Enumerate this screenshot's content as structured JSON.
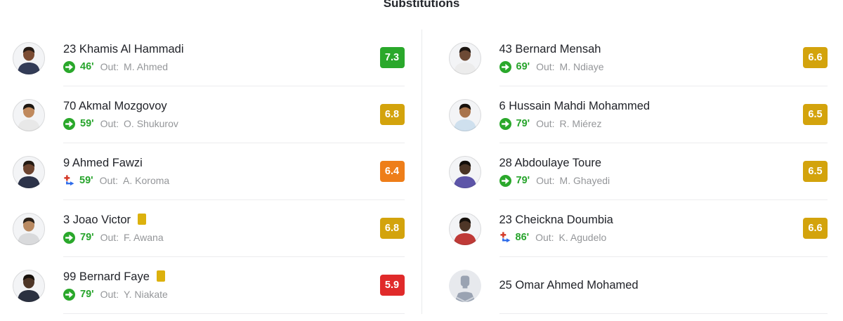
{
  "title": "Substitutions",
  "labels": {
    "out": "Out:"
  },
  "colors": {
    "rating": {
      "green": "#2aa82b",
      "yellow": "#d3a30c",
      "orange": "#ee7e19",
      "red": "#e02a2a"
    },
    "minute_green": "#27a42c",
    "sub_in_green": "#2aa82b",
    "injury_red": "#d43a28",
    "injury_blue": "#2e6bea",
    "yellow_card": "#dcb10d",
    "placeholder_avatar": {
      "bg": "#e7e9ed",
      "fg": "#9aa3b2",
      "stripe": "#cdd2da"
    }
  },
  "columns": {
    "left": [
      {
        "name": "23 Khamis Al Hammadi",
        "yellow_card": false,
        "sub": {
          "type": "in",
          "minute": "46'",
          "out_player": "M. Ahmed"
        },
        "rating": {
          "value": "7.3",
          "level": "green"
        },
        "avatar": {
          "type": "photo",
          "skin": "#7b4c33",
          "hair": "#241a14",
          "shirt": "#333c57",
          "bg": "#f3f4f6"
        }
      },
      {
        "name": "70 Akmal Mozgovoy",
        "yellow_card": false,
        "sub": {
          "type": "in",
          "minute": "59'",
          "out_player": "O. Shukurov"
        },
        "rating": {
          "value": "6.8",
          "level": "yellow"
        },
        "avatar": {
          "type": "photo",
          "skin": "#c08a5e",
          "hair": "#1d1712",
          "shirt": "#e8e8e8",
          "bg": "#f3f4f6"
        }
      },
      {
        "name": "9 Ahmed Fawzi",
        "yellow_card": false,
        "sub": {
          "type": "injury",
          "minute": "59'",
          "out_player": "A. Koroma"
        },
        "rating": {
          "value": "6.4",
          "level": "orange"
        },
        "avatar": {
          "type": "photo",
          "skin": "#6d4530",
          "hair": "#231a13",
          "shirt": "#2c3349",
          "bg": "#f3f4f6"
        }
      },
      {
        "name": "3 Joao Victor",
        "yellow_card": true,
        "sub": {
          "type": "in",
          "minute": "79'",
          "out_player": "F. Awana"
        },
        "rating": {
          "value": "6.8",
          "level": "yellow"
        },
        "avatar": {
          "type": "photo",
          "skin": "#b98a62",
          "hair": "#2a2119",
          "shirt": "#d9dadc",
          "bg": "#f3f4f6"
        }
      },
      {
        "name": "99 Bernard Faye",
        "yellow_card": true,
        "sub": {
          "type": "in",
          "minute": "79'",
          "out_player": "Y. Niakate"
        },
        "rating": {
          "value": "5.9",
          "level": "red"
        },
        "avatar": {
          "type": "photo",
          "skin": "#4e3627",
          "hair": "#17110c",
          "shirt": "#2b3140",
          "bg": "#f3f4f6"
        }
      }
    ],
    "right": [
      {
        "name": "43 Bernard Mensah",
        "yellow_card": false,
        "sub": {
          "type": "in",
          "minute": "69'",
          "out_player": "M. Ndiaye"
        },
        "rating": {
          "value": "6.6",
          "level": "yellow"
        },
        "avatar": {
          "type": "photo",
          "skin": "#6d4a35",
          "hair": "#1c1510",
          "shirt": "#ececec",
          "bg": "#f3f4f6"
        }
      },
      {
        "name": "6 Hussain Mahdi Mohammed",
        "yellow_card": false,
        "sub": {
          "type": "in",
          "minute": "79'",
          "out_player": "R. Miérez"
        },
        "rating": {
          "value": "6.5",
          "level": "yellow"
        },
        "avatar": {
          "type": "photo",
          "skin": "#a9744c",
          "hair": "#17110c",
          "shirt": "#cfe0ee",
          "bg": "#f3f4f6"
        }
      },
      {
        "name": "28 Abdoulaye Toure",
        "yellow_card": false,
        "sub": {
          "type": "in",
          "minute": "79'",
          "out_player": "M. Ghayedi"
        },
        "rating": {
          "value": "6.5",
          "level": "yellow"
        },
        "avatar": {
          "type": "photo",
          "skin": "#4a3425",
          "hair": "#120d09",
          "shirt": "#5d55a8",
          "bg": "#f3f4f6"
        }
      },
      {
        "name": "23 Cheickna Doumbia",
        "yellow_card": false,
        "sub": {
          "type": "injury",
          "minute": "86'",
          "out_player": "K. Agudelo"
        },
        "rating": {
          "value": "6.6",
          "level": "yellow"
        },
        "avatar": {
          "type": "photo",
          "skin": "#4e3627",
          "hair": "#15100b",
          "shirt": "#bf3a37",
          "bg": "#f3f4f6"
        }
      },
      {
        "name": "25 Omar Ahmed Mohamed",
        "yellow_card": false,
        "sub": null,
        "rating": null,
        "avatar": {
          "type": "placeholder"
        }
      }
    ]
  }
}
